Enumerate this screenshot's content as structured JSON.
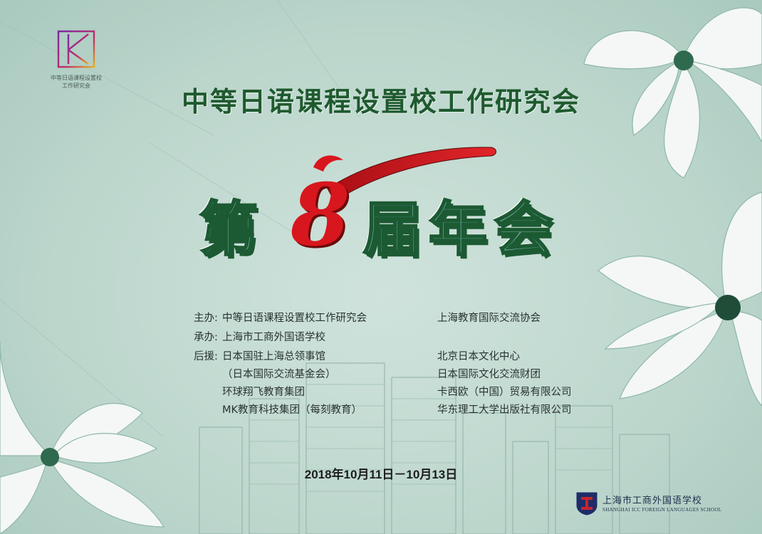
{
  "logo": {
    "line1": "中等日语课程设置校",
    "line2": "工作研究会"
  },
  "header": {
    "title": "中等日语课程设置校工作研究会"
  },
  "event": {
    "char_di": "第",
    "session_numeral": "8",
    "char_jie": "届",
    "char_nian": "年",
    "char_hui": "会"
  },
  "organizers": {
    "host_label": "主办:",
    "host_1": "中等日语课程设置校工作研究会",
    "host_2": "上海教育国际交流协会",
    "co_label": "承办:",
    "co_1": "上海市工商外国语学校",
    "support_label": "后援:",
    "supporters_left": [
      "日本国驻上海总领事馆",
      "（日本国际交流基金会）",
      "环球翔飞教育集团",
      "MK教育科技集团（每刻教育）"
    ],
    "supporters_right": [
      "北京日本文化中心",
      "日本国际文化交流财团",
      "卡西欧（中国）贸易有限公司",
      "华东理工大学出版社有限公司"
    ]
  },
  "date": "2018年10月11日－10月13日",
  "school": {
    "name_cn": "上海市工商外国语学校",
    "name_en": "SHANGHAI ICC FOREIGN LANGUAGES SCHOOL"
  },
  "colors": {
    "background": "#c5dbd3",
    "title_green": "#1f5a2f",
    "char_fill": "#7cb6ad",
    "numeral_red": "#d8161d"
  }
}
